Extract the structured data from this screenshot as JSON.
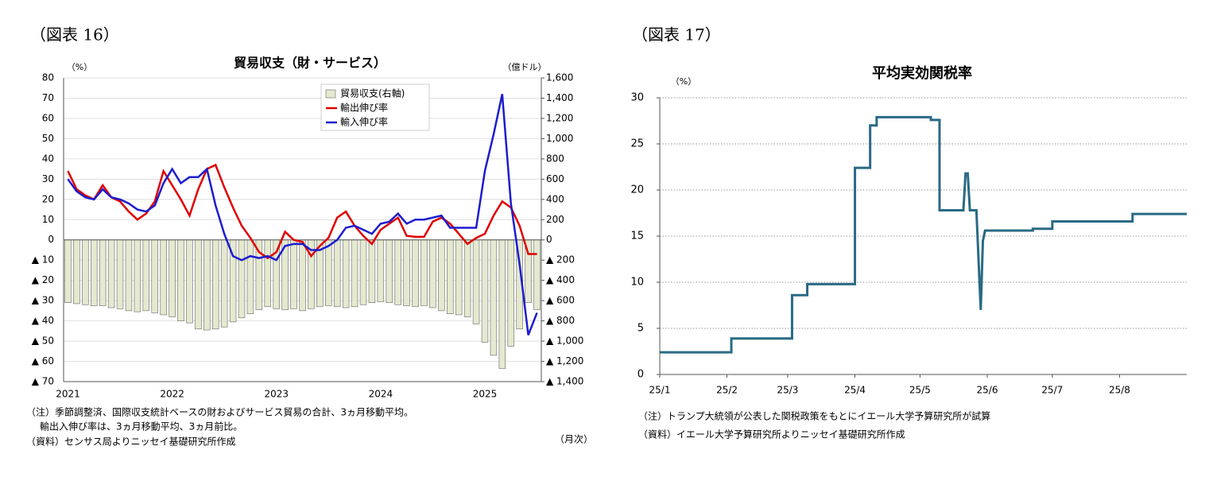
{
  "chart_data": [
    {
      "type": "combo",
      "figure_label": "（図表 16）",
      "title": "貿易収支（財・サービス）",
      "y_unit": "（%）",
      "y2_unit": "（億ドル）",
      "x_unit": "（月次）",
      "notes": [
        "（注）季節調整済、国際収支統計ベースの財およびサービス貿易の合計、3ヵ月移動平均。",
        "輸出入伸び率は、3ヵ月移動平均、3ヵ月前比。",
        "（資料）センサス局よりニッセイ基礎研究所作成"
      ],
      "categories": [
        "2021",
        null,
        null,
        null,
        null,
        null,
        null,
        null,
        null,
        null,
        null,
        null,
        "2022",
        null,
        null,
        null,
        null,
        null,
        null,
        null,
        null,
        null,
        null,
        null,
        "2023",
        null,
        null,
        null,
        null,
        null,
        null,
        null,
        null,
        null,
        null,
        null,
        "2024",
        null,
        null,
        null,
        null,
        null,
        null,
        null,
        null,
        null,
        null,
        null,
        "2025",
        null,
        null,
        null,
        null,
        null,
        null
      ],
      "series": [
        {
          "name": "貿易収支(右軸)",
          "type": "bar",
          "axis": "y2",
          "color": "#e4e9cf",
          "values": [
            -620,
            -630,
            -640,
            -650,
            -650,
            -670,
            -680,
            -700,
            -710,
            -700,
            -720,
            -740,
            -760,
            -800,
            -820,
            -880,
            -890,
            -880,
            -860,
            -810,
            -770,
            -730,
            -690,
            -660,
            -680,
            -690,
            -680,
            -700,
            -680,
            -660,
            -650,
            -660,
            -670,
            -660,
            -640,
            -620,
            -610,
            -620,
            -640,
            -650,
            -660,
            -650,
            -670,
            -700,
            -730,
            -740,
            -760,
            -830,
            -1010,
            -1140,
            -1270,
            -1050,
            -880,
            -620,
            -690
          ]
        },
        {
          "name": "輸出伸び率",
          "type": "line",
          "color": "#e00000",
          "values": [
            34,
            25,
            22,
            20,
            27,
            21,
            19,
            14,
            10,
            13,
            19,
            34,
            27,
            20,
            12,
            25,
            35,
            37,
            26,
            16,
            7,
            1,
            -6,
            -9,
            -6,
            4,
            0,
            -1,
            -8,
            -3,
            1,
            11,
            14,
            7,
            2,
            -2,
            5,
            8,
            11,
            2,
            1.5,
            1.5,
            9,
            11,
            8,
            3,
            -2,
            1,
            3,
            12,
            19,
            16,
            7,
            -7,
            -7
          ]
        },
        {
          "name": "輸入伸び率",
          "type": "line",
          "color": "#1c1cd0",
          "values": [
            30,
            24,
            21,
            20,
            25,
            21,
            20,
            18,
            15,
            14,
            17,
            28,
            35,
            28,
            31,
            31,
            35,
            17,
            3,
            -8,
            -10,
            -8,
            -9,
            -8,
            -10,
            -3,
            -2,
            -2,
            -5,
            -5,
            -3,
            0,
            6,
            7,
            5,
            3,
            8,
            9,
            13,
            8,
            10,
            10,
            11,
            12,
            6,
            6,
            6,
            6,
            34,
            52,
            72,
            18,
            -12,
            -47,
            -36
          ]
        }
      ],
      "ylim": [
        -70,
        80
      ],
      "yticks": [
        80,
        70,
        60,
        50,
        40,
        30,
        20,
        10,
        0,
        {
          "value": -10,
          "label": "▲ 10"
        },
        {
          "value": -20,
          "label": "▲ 20"
        },
        {
          "value": -30,
          "label": "▲ 30"
        },
        {
          "value": -40,
          "label": "▲ 40"
        },
        {
          "value": -50,
          "label": "▲ 50"
        },
        {
          "value": -60,
          "label": "▲ 60"
        },
        {
          "value": -70,
          "label": "▲ 70"
        }
      ],
      "y2lim": [
        -1400,
        1600
      ],
      "y2ticks": [
        {
          "value": 1600,
          "label": "1,600"
        },
        {
          "value": 1400,
          "label": "1,400"
        },
        {
          "value": 1200,
          "label": "1,200"
        },
        {
          "value": 1000,
          "label": "1,000"
        },
        800,
        600,
        400,
        200,
        0,
        {
          "value": -200,
          "label": "▲ 200"
        },
        {
          "value": -400,
          "label": "▲ 400"
        },
        {
          "value": -600,
          "label": "▲ 600"
        },
        {
          "value": -800,
          "label": "▲ 800"
        },
        {
          "value": -1000,
          "label": "▲ 1,000"
        },
        {
          "value": -1200,
          "label": "▲ 1,200"
        },
        {
          "value": -1400,
          "label": "▲ 1,400"
        }
      ],
      "grid": true,
      "legend": "top"
    },
    {
      "type": "line",
      "figure_label": "（図表 17）",
      "title": "平均実効関税率",
      "y_unit": "（%）",
      "notes": [
        "（注）トランプ大統領が公表した関税政策をもとにイエール大学予算研究所が試算",
        "（資料）イエール大学予算研究所よりニッセイ基礎研究所作成"
      ],
      "x": [
        0,
        33,
        33,
        61,
        61,
        68,
        68,
        90,
        90,
        97,
        97,
        100,
        100,
        125,
        125,
        129,
        129,
        140,
        141,
        142,
        143,
        143,
        146,
        148,
        149,
        150,
        172,
        172,
        181,
        181,
        218,
        218,
        243
      ],
      "series": [
        {
          "name": "平均実効関税率",
          "color": "#2a6a85",
          "values": [
            2.4,
            2.4,
            3.9,
            3.9,
            8.6,
            8.6,
            9.8,
            9.8,
            22.4,
            22.4,
            27.0,
            27.0,
            27.9,
            27.9,
            27.6,
            27.6,
            17.8,
            17.8,
            21.8,
            21.8,
            17.8,
            17.8,
            17.8,
            7.0,
            14.5,
            15.6,
            15.6,
            15.8,
            15.8,
            16.6,
            16.6,
            17.4,
            17.4
          ]
        }
      ],
      "xlim": [
        0,
        243
      ],
      "xticks": [
        {
          "value": 0,
          "label": "25/1"
        },
        {
          "value": 31,
          "label": "25/2"
        },
        {
          "value": 59,
          "label": "25/3"
        },
        {
          "value": 90,
          "label": "25/4"
        },
        {
          "value": 120,
          "label": "25/5"
        },
        {
          "value": 151,
          "label": "25/6"
        },
        {
          "value": 181,
          "label": "25/7"
        },
        {
          "value": 212,
          "label": "25/8"
        }
      ],
      "ylim": [
        0,
        30
      ],
      "yticks": [
        0,
        5,
        10,
        15,
        20,
        25,
        30
      ],
      "grid": true
    }
  ]
}
